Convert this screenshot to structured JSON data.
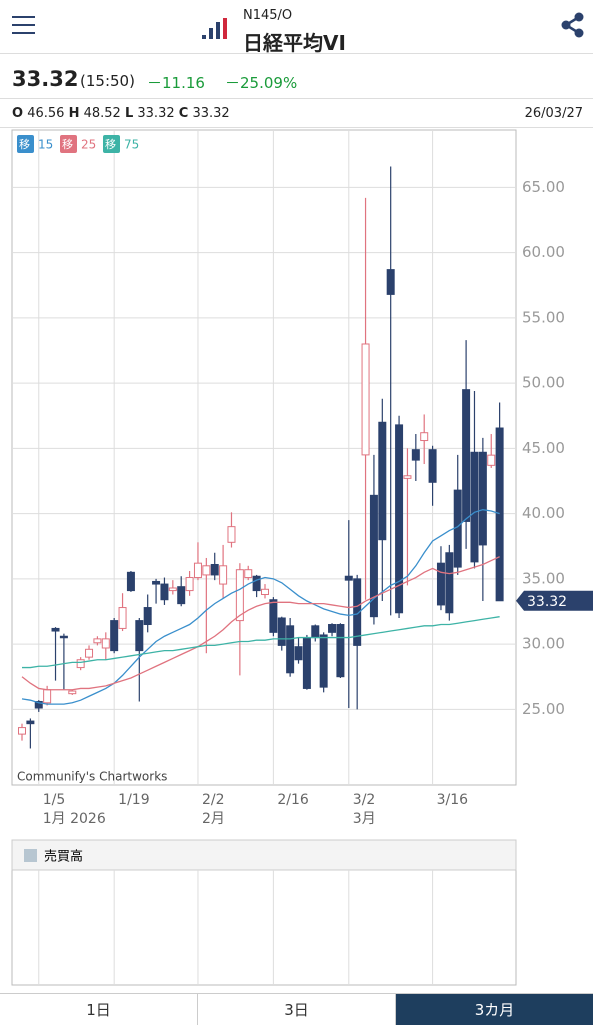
{
  "header": {
    "code": "N145/O",
    "title": "日経平均VI"
  },
  "quote": {
    "price": "33.32",
    "time": "(15:50)",
    "change": "－11.16",
    "change_pct": "－25.09%"
  },
  "ohlc": {
    "o_label": "O",
    "o": "46.56",
    "h_label": "H",
    "h": "48.52",
    "l_label": "L",
    "l": "33.32",
    "c_label": "C",
    "c": "33.32",
    "date": "26/03/27"
  },
  "tabs": [
    "1日",
    "3日",
    "3カ月"
  ],
  "chart_data": {
    "type": "candlestick",
    "attribution": "Communify's Chartworks",
    "volume_title": "売買高",
    "volume_color": "#b7c6d1",
    "up_color": "#e0737f",
    "down_color": "#2b416c",
    "grid": true,
    "categories": [
      null,
      null,
      "1/5",
      null,
      null,
      null,
      null,
      null,
      null,
      null,
      null,
      "1/19",
      null,
      null,
      null,
      null,
      null,
      null,
      null,
      null,
      null,
      "2/2",
      null,
      null,
      null,
      null,
      null,
      null,
      null,
      null,
      "2/16",
      null,
      null,
      null,
      null,
      null,
      null,
      null,
      null,
      "3/2",
      null,
      null,
      null,
      null,
      null,
      null,
      null,
      null,
      null,
      "3/16",
      null,
      null,
      null,
      null,
      null,
      null,
      null,
      null
    ],
    "category_sublabels": [
      null,
      null,
      "1月 2026",
      null,
      null,
      null,
      null,
      null,
      null,
      null,
      null,
      null,
      null,
      null,
      null,
      null,
      null,
      null,
      null,
      null,
      null,
      "2月",
      null,
      null,
      null,
      null,
      null,
      null,
      null,
      null,
      null,
      null,
      null,
      null,
      null,
      null,
      null,
      null,
      null,
      "3月",
      null,
      null,
      null,
      null,
      null,
      null,
      null,
      null,
      null,
      null,
      null,
      null,
      null,
      null,
      null,
      null,
      null,
      null
    ],
    "open": [
      23.1,
      24.1,
      25.6,
      25.5,
      31.2,
      30.6,
      26.2,
      28.2,
      29.0,
      30.1,
      29.7,
      31.8,
      31.2,
      35.5,
      31.8,
      32.8,
      34.8,
      34.6,
      34.1,
      34.4,
      34.1,
      35.1,
      35.3,
      36.1,
      34.6,
      37.8,
      31.8,
      35.1,
      35.2,
      33.8,
      33.4,
      32.0,
      31.4,
      29.8,
      30.5,
      31.4,
      30.7,
      31.5,
      31.5,
      35.2,
      35.0,
      44.5,
      41.4,
      47.0,
      58.7,
      46.8,
      42.7,
      44.9,
      45.6,
      44.9,
      36.2,
      37.0,
      41.8,
      49.5,
      44.7,
      44.7,
      43.7,
      46.56
    ],
    "high": [
      23.9,
      24.3,
      25.7,
      26.8,
      31.3,
      30.8,
      26.5,
      29.0,
      29.9,
      30.6,
      30.9,
      32.0,
      33.9,
      35.6,
      32.0,
      33.8,
      35.0,
      35.1,
      34.9,
      35.2,
      35.6,
      37.8,
      36.6,
      37.0,
      37.6,
      40.1,
      36.2,
      36.0,
      35.3,
      34.6,
      33.6,
      32.1,
      32.0,
      30.5,
      30.7,
      31.5,
      30.9,
      31.6,
      31.6,
      39.5,
      35.3,
      64.2,
      44.5,
      48.8,
      66.6,
      47.5,
      45.0,
      46.1,
      47.6,
      45.2,
      37.5,
      37.6,
      44.5,
      53.3,
      49.4,
      45.8,
      46.1,
      48.52
    ],
    "low": [
      22.6,
      22.0,
      24.8,
      25.3,
      27.2,
      26.5,
      26.1,
      28.0,
      28.8,
      29.9,
      28.8,
      29.3,
      31.0,
      34.0,
      25.6,
      30.9,
      33.1,
      33.0,
      33.8,
      32.9,
      33.7,
      34.9,
      29.3,
      34.9,
      33.5,
      37.4,
      27.6,
      34.9,
      33.6,
      33.5,
      30.6,
      29.5,
      27.5,
      28.5,
      26.5,
      30.2,
      26.3,
      30.6,
      27.4,
      25.1,
      25.0,
      33.4,
      31.5,
      33.3,
      32.2,
      32.0,
      34.5,
      42.5,
      43.8,
      40.6,
      32.6,
      31.8,
      35.3,
      37.3,
      35.8,
      33.3,
      43.5,
      33.32
    ],
    "close": [
      23.6,
      23.9,
      25.1,
      26.5,
      31.0,
      30.5,
      26.4,
      28.8,
      29.6,
      30.4,
      30.4,
      29.5,
      32.8,
      34.1,
      29.5,
      31.5,
      34.6,
      33.4,
      34.3,
      33.1,
      35.1,
      36.2,
      36.0,
      35.3,
      36.0,
      39.0,
      35.7,
      35.7,
      34.1,
      34.2,
      30.9,
      29.9,
      27.8,
      28.8,
      26.6,
      30.5,
      26.7,
      30.9,
      27.5,
      34.9,
      29.9,
      53.0,
      32.1,
      38.0,
      56.8,
      32.4,
      42.9,
      44.1,
      46.2,
      42.4,
      33.0,
      32.4,
      35.9,
      39.4,
      36.3,
      37.6,
      44.48,
      33.32
    ],
    "series": [
      {
        "badge": "移",
        "name": "15",
        "color": "#3a8fcc",
        "values": [
          25.8,
          25.7,
          25.5,
          25.4,
          25.4,
          25.4,
          25.5,
          25.7,
          26.0,
          26.3,
          26.6,
          27.0,
          27.6,
          28.3,
          29.0,
          29.6,
          30.2,
          30.6,
          30.9,
          31.2,
          31.5,
          32.0,
          32.6,
          33.1,
          33.5,
          33.9,
          34.2,
          34.6,
          34.9,
          35.1,
          35.0,
          34.7,
          34.2,
          33.7,
          33.3,
          33.0,
          32.7,
          32.5,
          32.3,
          32.2,
          32.3,
          32.9,
          33.5,
          34.0,
          34.5,
          34.8,
          35.2,
          36.0,
          37.0,
          37.9,
          38.3,
          38.7,
          39.0,
          39.6,
          40.1,
          40.3,
          40.2,
          40.0
        ]
      },
      {
        "badge": "移",
        "name": "25",
        "color": "#e0737f",
        "values": [
          27.5,
          27.0,
          26.6,
          26.5,
          26.5,
          26.5,
          26.5,
          26.6,
          26.6,
          26.7,
          26.8,
          27.0,
          27.2,
          27.4,
          27.7,
          28.0,
          28.3,
          28.6,
          28.9,
          29.2,
          29.5,
          29.8,
          30.2,
          30.6,
          31.1,
          31.7,
          32.2,
          32.6,
          32.9,
          33.1,
          33.2,
          33.2,
          33.2,
          33.1,
          33.1,
          33.1,
          33.1,
          33.0,
          32.9,
          32.8,
          32.9,
          33.3,
          33.6,
          33.9,
          34.2,
          34.5,
          34.8,
          35.1,
          35.5,
          35.8,
          35.5,
          35.4,
          35.5,
          35.7,
          35.9,
          36.1,
          36.4,
          36.7
        ]
      },
      {
        "badge": "移",
        "name": "75",
        "color": "#3db3a6",
        "values": [
          28.2,
          28.2,
          28.3,
          28.3,
          28.4,
          28.5,
          28.6,
          28.6,
          28.7,
          28.8,
          28.8,
          28.9,
          29.0,
          29.1,
          29.2,
          29.3,
          29.4,
          29.5,
          29.5,
          29.6,
          29.7,
          29.8,
          29.9,
          29.9,
          30.0,
          30.1,
          30.2,
          30.2,
          30.3,
          30.3,
          30.4,
          30.4,
          30.4,
          30.5,
          30.5,
          30.5,
          30.5,
          30.5,
          30.5,
          30.5,
          30.6,
          30.7,
          30.8,
          30.9,
          31.0,
          31.1,
          31.2,
          31.3,
          31.4,
          31.4,
          31.5,
          31.5,
          31.6,
          31.7,
          31.8,
          31.9,
          32.0,
          32.1
        ]
      }
    ],
    "ylim": [
      19.2,
      69.4
    ],
    "yticks": [
      {
        "value": 25,
        "label": "25.00"
      },
      {
        "value": 30,
        "label": "30.00"
      },
      {
        "value": 35,
        "label": "35.00"
      },
      {
        "value": 40,
        "label": "40.00"
      },
      {
        "value": 45,
        "label": "45.00"
      },
      {
        "value": 50,
        "label": "50.00"
      },
      {
        "value": 55,
        "label": "55.00"
      },
      {
        "value": 60,
        "label": "60.00"
      },
      {
        "value": 65,
        "label": "65.00"
      }
    ]
  }
}
